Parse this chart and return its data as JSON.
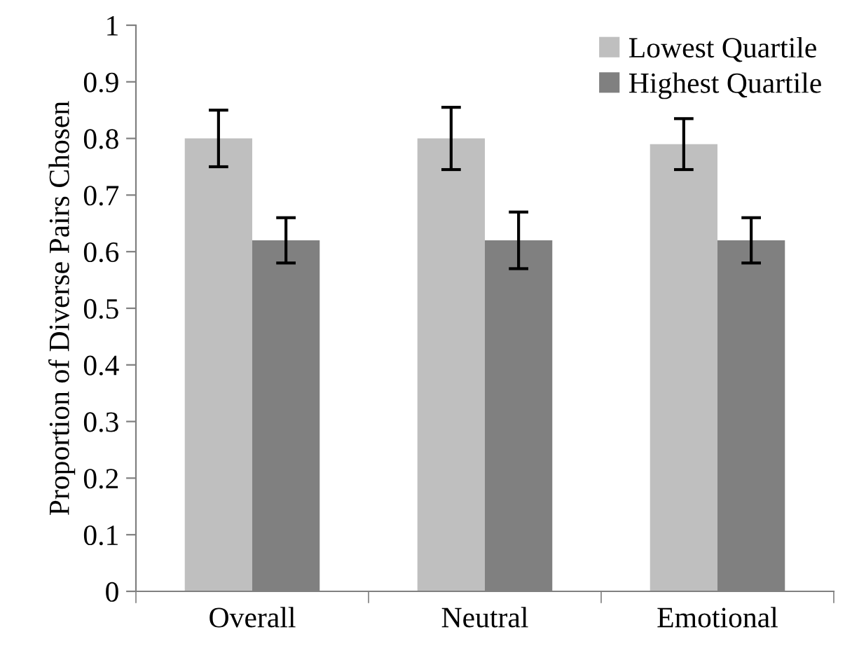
{
  "chart_data": {
    "type": "bar",
    "ylabel": "Proportion of Diverse Pairs Chosen",
    "categories": [
      "Overall",
      "Neutral",
      "Emotional"
    ],
    "series": [
      {
        "name": "Lowest Quartile",
        "color": "#bfbfbf",
        "values": [
          0.8,
          0.8,
          0.79
        ],
        "errors": [
          0.05,
          0.055,
          0.045
        ]
      },
      {
        "name": "Highest Quartile",
        "color": "#808080",
        "values": [
          0.62,
          0.62,
          0.62
        ],
        "errors": [
          0.04,
          0.05,
          0.04
        ]
      }
    ],
    "ylim": [
      0,
      1
    ],
    "yticks": [
      0,
      0.1,
      0.2,
      0.3,
      0.4,
      0.5,
      0.6,
      0.7,
      0.8,
      0.9,
      1
    ],
    "grid": false,
    "legend": "top right"
  }
}
